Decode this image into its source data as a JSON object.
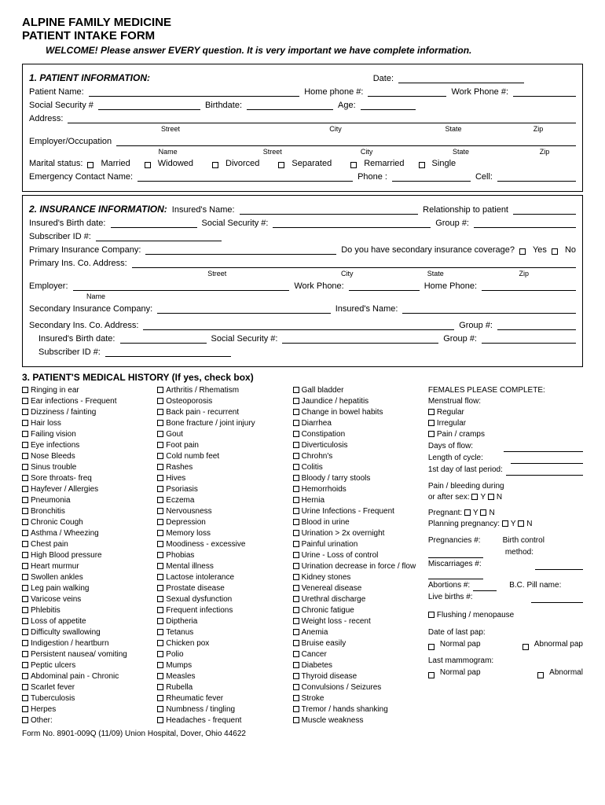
{
  "header": {
    "org": "ALPINE FAMILY MEDICINE",
    "form": "PATIENT INTAKE FORM",
    "welcome": "WELCOME! Please answer EVERY question. It is very important we have complete information."
  },
  "s1": {
    "title": "1.  PATIENT INFORMATION:",
    "date": "Date:",
    "patient_name": "Patient Name:",
    "home_phone": "Home phone #:",
    "work_phone": "Work Phone #:",
    "ssn": "Social Security #",
    "birthdate": "Birthdate:",
    "age": "Age:",
    "address": "Address:",
    "street": "Street",
    "city": "City",
    "state": "State",
    "zip": "Zip",
    "employer": "Employer/Occupation",
    "name": "Name",
    "marital": "Marital status:",
    "m1": "Married",
    "m2": "Widowed",
    "m3": "Divorced",
    "m4": "Separated",
    "m5": "Remarried",
    "m6": "Single",
    "emergency": "Emergency Contact Name:",
    "phone": "Phone :",
    "cell": "Cell:"
  },
  "s2": {
    "title": "2.  INSURANCE INFORMATION:",
    "insured_name": "Insured's Name:",
    "relationship": "Relationship to patient",
    "ins_birth": "Insured's Birth date:",
    "ssn": "Social Security #:",
    "group": "Group #:",
    "subscriber": "Subscriber ID #:",
    "primary_co": "Primary Insurance Company:",
    "secondary_q": "Do you have secondary insurance coverage?",
    "yes": "Yes",
    "no": "No",
    "primary_addr": "Primary Ins. Co. Address:",
    "street": "Street",
    "city": "City",
    "state": "State",
    "zip": "Zip",
    "employer": "Employer:",
    "name": "Name",
    "work_phone": "Work Phone:",
    "home_phone": "Home Phone:",
    "secondary_co": "Secondary Insurance Company:",
    "insured_name2": "Insured's Name:",
    "secondary_addr": "Secondary Ins. Co. Address:"
  },
  "s3": {
    "title": "3.  PATIENT'S MEDICAL HISTORY (If yes, check box)",
    "col1": [
      "Ringing in ear",
      "Ear infections - Frequent",
      "Dizziness / fainting",
      "Hair loss",
      "Failing vision",
      "Eye infections",
      "Nose Bleeds",
      "Sinus trouble",
      "Sore throats- freq",
      "Hayfever / Allergies",
      "Pneumonia",
      "Bronchitis",
      "Chronic Cough",
      "Asthma / Wheezing",
      "Chest pain",
      "High Blood pressure",
      "Heart murmur",
      "Swollen ankles",
      "Leg pain walking",
      "Varicose veins",
      "Phlebitis",
      "Loss of appetite",
      "Difficulty swallowing",
      "Indigestion / heartburn",
      "Persistent nausea/ vomiting",
      "Peptic ulcers",
      "Abdominal pain - Chronic",
      "Scarlet fever",
      "Tuberculosis",
      "Herpes",
      "Other:"
    ],
    "col2": [
      "Arthritis / Rhematism",
      "Osteoporosis",
      "Back pain - recurrent",
      "Bone fracture / joint injury",
      "Gout",
      "Foot pain",
      "Cold numb feet",
      "Rashes",
      "Hives",
      "Psoriasis",
      "Eczema",
      "Nervousness",
      "Depression",
      "Memory loss",
      "Moodiness - excessive",
      "Phobias",
      "Mental illness",
      "Lactose intolerance",
      "Prostate disease",
      "Sexual dysfunction",
      "Frequent infections",
      "Diptheria",
      "Tetanus",
      "Chicken pox",
      "Polio",
      "Mumps",
      "Measles",
      "Rubella",
      "Rheumatic fever",
      "Numbness / tingling",
      "Headaches - frequent"
    ],
    "col3": [
      "Gall bladder",
      "Jaundice / hepatitis",
      "Change in bowel habits",
      "Diarrhea",
      "Constipation",
      "Diverticulosis",
      "Chrohn's",
      "Colitis",
      "Bloody / tarry stools",
      "Hemorrhoids",
      "Hernia",
      "Urine Infections - Frequent",
      "Blood in urine",
      "Urination > 2x overnight",
      "Painful urination",
      "Urine - Loss of control",
      "Urination decrease in force / flow",
      "Kidney stones",
      "Venereal disease",
      "Urethral discharge",
      "Chronic fatigue",
      "Weight loss - recent",
      "Anemia",
      "Bruise easily",
      "Cancer",
      "Diabetes",
      "Thyroid disease",
      "Convulsions / Seizures",
      "Stroke",
      "Tremor / hands shanking",
      "Muscle weakness"
    ],
    "fem": {
      "head": "FEMALES PLEASE COMPLETE:",
      "mflow": "Menstrual flow:",
      "regular": "Regular",
      "irregular": "Irregular",
      "pain": "Pain / cramps",
      "days": "Days of flow:",
      "length": "Length of cycle:",
      "firstday": "1st day of last period:",
      "bleed": "Pain / bleeding during",
      "bleed2": "or after sex:",
      "y": "Y",
      "n": "N",
      "pregnant": "Pregnant:",
      "planning": "Planning pregnancy:",
      "pregs": "Pregnancies #:",
      "bc": "Birth control",
      "method": "method:",
      "misc": "Miscarriages #:",
      "abort": "Abortions #:",
      "pill": "B.C. Pill name:",
      "live": "Live births #:",
      "flush": "Flushing / menopause",
      "pap": "Date of last pap:",
      "npap": "Normal pap",
      "apap": "Abnormal pap",
      "mamm": "Last mammogram:",
      "npap2": "Normal pap",
      "abn": "Abnormal"
    }
  },
  "footer": "Form No. 8901-009Q (11/09) Union Hospital, Dover, Ohio 44622"
}
